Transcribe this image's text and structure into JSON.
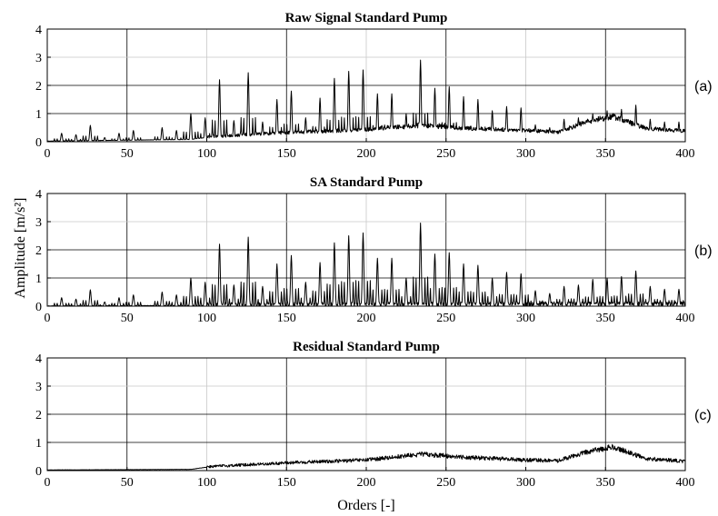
{
  "figure": {
    "ylabel": "Amplitude [m/s²]",
    "xlabel": "Orders [-]"
  },
  "chart_data": [
    {
      "type": "line",
      "title": "Raw Signal Standard Pump",
      "tag": "(a)",
      "xlim": [
        0,
        400
      ],
      "ylim": [
        0,
        4
      ],
      "xticks": [
        0,
        50,
        100,
        150,
        200,
        250,
        300,
        350,
        400
      ],
      "yticks": [
        0,
        1,
        2,
        3,
        4
      ],
      "grid": true,
      "peaks": [
        [
          9,
          0.3
        ],
        [
          18,
          0.25
        ],
        [
          27,
          0.58
        ],
        [
          36,
          0.15
        ],
        [
          45,
          0.3
        ],
        [
          54,
          0.4
        ],
        [
          72,
          0.5
        ],
        [
          81,
          0.4
        ],
        [
          90,
          1.0
        ],
        [
          99,
          0.85
        ],
        [
          108,
          2.2
        ],
        [
          117,
          0.75
        ],
        [
          126,
          2.45
        ],
        [
          135,
          0.7
        ],
        [
          144,
          1.5
        ],
        [
          153,
          1.8
        ],
        [
          162,
          0.85
        ],
        [
          171,
          1.55
        ],
        [
          180,
          2.25
        ],
        [
          189,
          2.5
        ],
        [
          198,
          2.55
        ],
        [
          207,
          1.7
        ],
        [
          216,
          1.7
        ],
        [
          225,
          1.0
        ],
        [
          234,
          2.9
        ],
        [
          243,
          1.9
        ],
        [
          252,
          1.95
        ],
        [
          261,
          1.6
        ],
        [
          270,
          1.5
        ],
        [
          279,
          1.1
        ],
        [
          288,
          1.25
        ],
        [
          297,
          1.2
        ],
        [
          306,
          0.6
        ],
        [
          315,
          0.5
        ],
        [
          324,
          0.8
        ],
        [
          333,
          0.85
        ],
        [
          342,
          1.0
        ],
        [
          351,
          1.1
        ],
        [
          360,
          1.15
        ],
        [
          369,
          1.3
        ],
        [
          378,
          0.8
        ],
        [
          387,
          0.7
        ],
        [
          396,
          0.7
        ]
      ],
      "baseline": [
        [
          0,
          0.02
        ],
        [
          90,
          0.08
        ],
        [
          100,
          0.15
        ],
        [
          150,
          0.3
        ],
        [
          200,
          0.4
        ],
        [
          235,
          0.55
        ],
        [
          260,
          0.45
        ],
        [
          300,
          0.38
        ],
        [
          320,
          0.32
        ],
        [
          340,
          0.7
        ],
        [
          355,
          0.85
        ],
        [
          375,
          0.45
        ],
        [
          400,
          0.35
        ]
      ]
    },
    {
      "type": "line",
      "title": "SA Standard Pump",
      "tag": "(b)",
      "xlim": [
        0,
        400
      ],
      "ylim": [
        0,
        4
      ],
      "xticks": [
        0,
        50,
        100,
        150,
        200,
        250,
        300,
        350,
        400
      ],
      "yticks": [
        0,
        1,
        2,
        3,
        4
      ],
      "grid": true,
      "peaks": [
        [
          9,
          0.3
        ],
        [
          18,
          0.25
        ],
        [
          27,
          0.58
        ],
        [
          36,
          0.15
        ],
        [
          45,
          0.3
        ],
        [
          54,
          0.4
        ],
        [
          72,
          0.5
        ],
        [
          81,
          0.4
        ],
        [
          90,
          1.0
        ],
        [
          99,
          0.85
        ],
        [
          108,
          2.2
        ],
        [
          117,
          0.75
        ],
        [
          126,
          2.45
        ],
        [
          135,
          0.7
        ],
        [
          144,
          1.5
        ],
        [
          153,
          1.8
        ],
        [
          162,
          0.85
        ],
        [
          171,
          1.55
        ],
        [
          180,
          2.25
        ],
        [
          189,
          2.5
        ],
        [
          198,
          2.6
        ],
        [
          207,
          1.7
        ],
        [
          216,
          1.7
        ],
        [
          225,
          1.0
        ],
        [
          234,
          2.95
        ],
        [
          243,
          1.85
        ],
        [
          252,
          1.9
        ],
        [
          261,
          1.5
        ],
        [
          270,
          1.45
        ],
        [
          279,
          1.0
        ],
        [
          288,
          1.2
        ],
        [
          297,
          1.15
        ],
        [
          306,
          0.55
        ],
        [
          315,
          0.45
        ],
        [
          324,
          0.7
        ],
        [
          333,
          0.75
        ],
        [
          342,
          0.95
        ],
        [
          351,
          1.0
        ],
        [
          360,
          1.05
        ],
        [
          369,
          1.25
        ],
        [
          378,
          0.7
        ],
        [
          387,
          0.6
        ],
        [
          396,
          0.6
        ]
      ],
      "baseline": [
        [
          0,
          0.0
        ],
        [
          100,
          0.02
        ],
        [
          400,
          0.05
        ]
      ]
    },
    {
      "type": "line",
      "title": "Residual Standard Pump",
      "tag": "(c)",
      "xlim": [
        0,
        400
      ],
      "ylim": [
        0,
        4
      ],
      "xticks": [
        0,
        50,
        100,
        150,
        200,
        250,
        300,
        350,
        400
      ],
      "yticks": [
        0,
        1,
        2,
        3,
        4
      ],
      "grid": true,
      "peaks": [],
      "baseline": [
        [
          0,
          0.02
        ],
        [
          90,
          0.04
        ],
        [
          100,
          0.12
        ],
        [
          150,
          0.25
        ],
        [
          200,
          0.35
        ],
        [
          235,
          0.55
        ],
        [
          260,
          0.45
        ],
        [
          300,
          0.35
        ],
        [
          320,
          0.32
        ],
        [
          340,
          0.65
        ],
        [
          355,
          0.8
        ],
        [
          375,
          0.4
        ],
        [
          400,
          0.3
        ]
      ]
    }
  ]
}
